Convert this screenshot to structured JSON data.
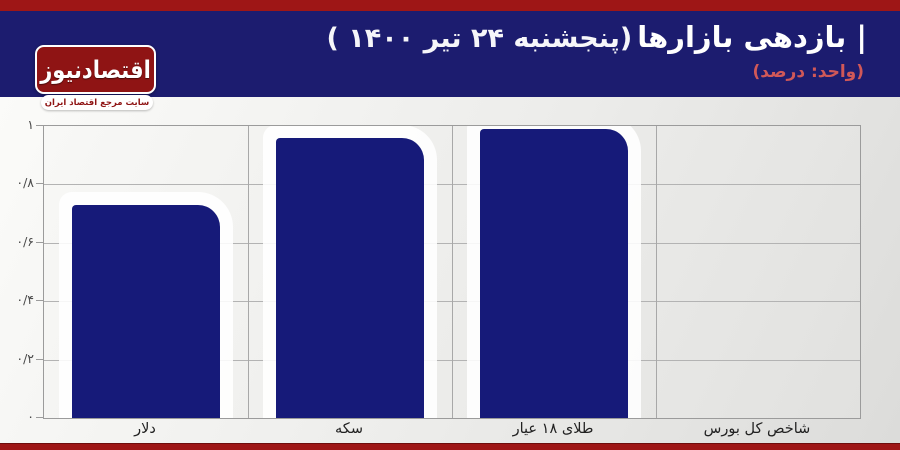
{
  "colors": {
    "red_strip": "#9e1616",
    "navy_header": "#1c1c6f",
    "bar_navy": "#161a79",
    "subtitle_red": "#d05858",
    "logo_red": "#8f1414"
  },
  "header": {
    "title_main": "| بازدهی بازارها",
    "title_paren": "(پنجشنبه ۲۴ تیر ۱۴۰۰ )",
    "subtitle": "(واحد: درصد)"
  },
  "logo": {
    "name": "اقتصادنیوز",
    "tagline": "سایت مرجع اقتصاد ایران"
  },
  "chart_data": {
    "type": "bar",
    "title": "بازدهی بازارها (پنجشنبه ۲۴ تیر ۱۴۰۰)",
    "subtitle": "(واحد: درصد)",
    "unit": "درصد",
    "categories": [
      "دلار",
      "سکه",
      "طلای ۱۸ عیار",
      "شاخص کل بورس"
    ],
    "values": [
      0.73,
      0.96,
      0.99,
      0
    ],
    "ylim": [
      0,
      1
    ],
    "ytick_step": 0.2,
    "ytick_labels": [
      "۰",
      "۰/۲",
      "۰/۴",
      "۰/۶",
      "۰/۸",
      "۱"
    ],
    "grid": true,
    "legend": false,
    "category_order": "left-to-right",
    "bar_color": "#161a79"
  }
}
